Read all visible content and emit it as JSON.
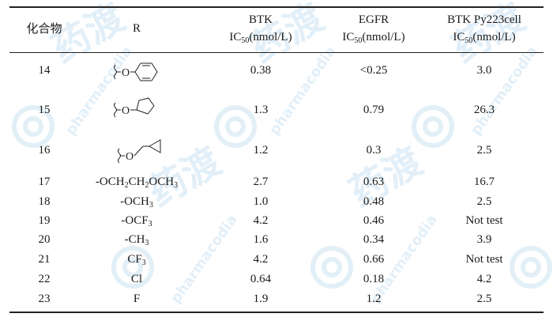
{
  "header": {
    "col1": "化合物",
    "col2": "R",
    "col3_line1": "BTK",
    "col3_line2_pre": "IC",
    "col3_line2_sub": "50",
    "col3_line2_post": "(nmol/L)",
    "col4_line1": "EGFR",
    "col4_line2_pre": "IC",
    "col4_line2_sub": "50",
    "col4_line2_post": "(nmol/L)",
    "col5_line1": "BTK Py223cell",
    "col5_line2_pre": "IC",
    "col5_line2_sub": "50",
    "col5_line2_post": "(nmol/L)"
  },
  "rows": [
    {
      "compound": "14",
      "r_icon": "phenoxy-structure-icon",
      "btk": "0.38",
      "egfr": "<0.25",
      "cell": "3.0"
    },
    {
      "compound": "15",
      "r_icon": "tetrahydrofuranyloxy-structure-icon",
      "btk": "1.3",
      "egfr": "0.79",
      "cell": "26.3"
    },
    {
      "compound": "16",
      "r_icon": "cyclopropylmethoxy-structure-icon",
      "btk": "1.2",
      "egfr": "0.3",
      "cell": "2.5"
    },
    {
      "compound": "17",
      "r_pre": "-OCH",
      "r_sub1": "2",
      "r_mid1": "CH",
      "r_sub2": "2",
      "r_mid2": "OCH",
      "r_sub3": "3",
      "btk": "2.7",
      "egfr": "0.63",
      "cell": "16.7"
    },
    {
      "compound": "18",
      "r_pre": "-OCH",
      "r_sub1": "3",
      "btk": "1.0",
      "egfr": "0.48",
      "cell": "2.5"
    },
    {
      "compound": "19",
      "r_pre": "-OCF",
      "r_sub1": "3",
      "btk": "4.2",
      "egfr": "0.46",
      "cell": "Not test"
    },
    {
      "compound": "20",
      "r_pre": "-CH",
      "r_sub1": "3",
      "btk": "1.6",
      "egfr": "0.34",
      "cell": "3.9"
    },
    {
      "compound": "21",
      "r_pre": "CF",
      "r_sub1": "3",
      "btk": "4.2",
      "egfr": "0.66",
      "cell": "Not test"
    },
    {
      "compound": "22",
      "r_pre": "Cl",
      "btk": "0.64",
      "egfr": "0.18",
      "cell": "4.2"
    },
    {
      "compound": "23",
      "r_pre": "F",
      "btk": "1.9",
      "egfr": "1.2",
      "cell": "2.5"
    }
  ],
  "watermark": {
    "icon": "pharmacodia-logo-watermark",
    "text": "pharmacodia",
    "chars": "药渡"
  }
}
